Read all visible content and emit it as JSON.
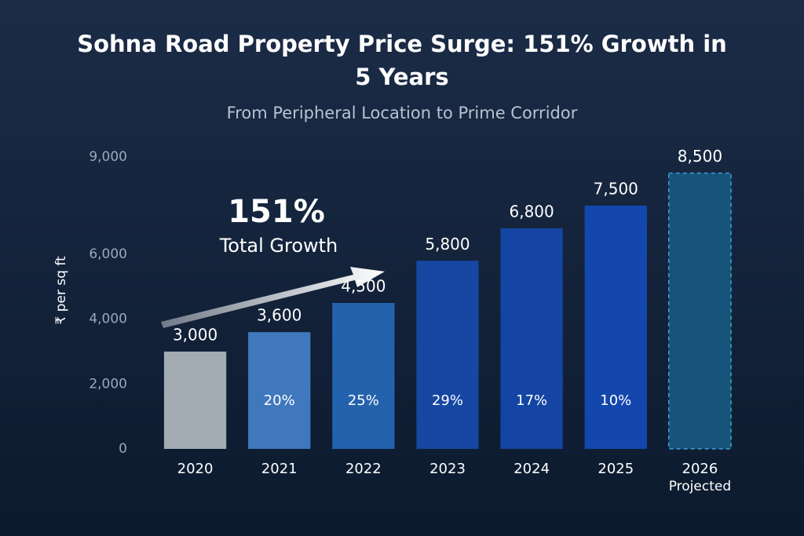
{
  "chart_data": {
    "type": "bar",
    "title": "Sohna Road Property Price Surge: 151% Growth in 5 Years",
    "subtitle": "From Peripheral Location to Prime Corridor",
    "y_label": "₹ per sq ft",
    "annotation": {
      "value": "151%",
      "text": "Total Growth"
    },
    "categories": [
      "2020",
      "2021",
      "2022",
      "2023",
      "2024",
      "2025",
      "2026"
    ],
    "x_sublabels": [
      null,
      null,
      null,
      null,
      null,
      null,
      "Projected"
    ],
    "values": [
      3000,
      3600,
      4500,
      5800,
      6800,
      7500,
      8500
    ],
    "value_labels": [
      "3,000",
      "3,600",
      "4,500",
      "5,800",
      "6,800",
      "7,500",
      "8,500"
    ],
    "growth": [
      null,
      20,
      25,
      29,
      17,
      10,
      null
    ],
    "growth_labels": [
      null,
      "20%",
      "25%",
      "29%",
      "17%",
      "10%",
      null
    ],
    "colors": [
      "#a3abb3",
      "#3f78bd",
      "#2462ad",
      "#1547a3",
      "#1445a4",
      "#1447ad",
      "#17547a"
    ],
    "ylim": [
      0,
      9000
    ],
    "yticks": [
      0,
      {
        "value": 2000,
        "label": "2,000"
      },
      {
        "value": 4000,
        "label": "4,000"
      },
      {
        "value": 6000,
        "label": "6,000"
      },
      {
        "value": 9000,
        "label": "9,000"
      }
    ]
  }
}
